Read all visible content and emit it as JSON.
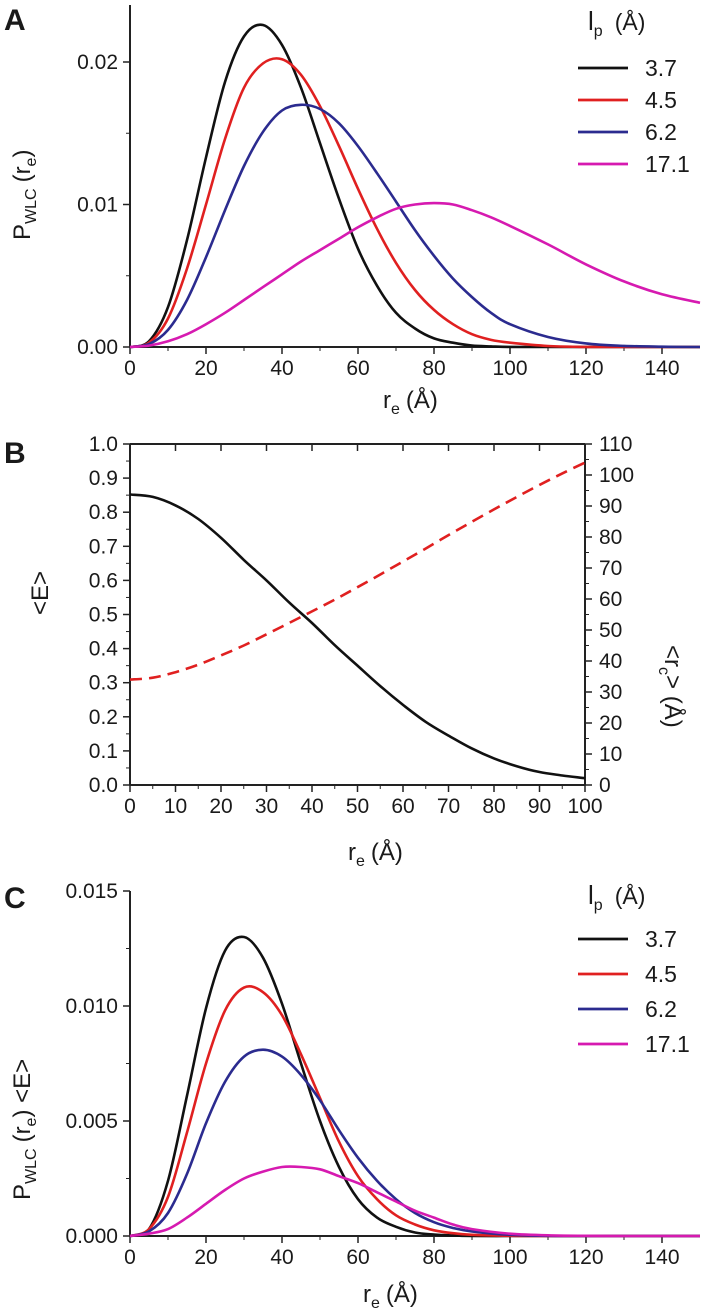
{
  "panel_labels": [
    "A",
    "B",
    "C"
  ],
  "chart_data": [
    {
      "id": "A",
      "type": "line",
      "xlabel": "r",
      "xlabel_sub": "e",
      "xlabel_unit": "(Å)",
      "ylabel": "P",
      "ylabel_sub1": "WLC",
      "ylabel_paren": "(r",
      "ylabel_sub2": "e",
      "ylabel_close": ")",
      "xlim": [
        0,
        150
      ],
      "ylim": [
        0,
        0.024
      ],
      "xticks": [
        0,
        20,
        40,
        60,
        80,
        100,
        120,
        140
      ],
      "xtick_labels": [
        "0",
        "20",
        "40",
        "60",
        "80",
        "100",
        "120",
        "140"
      ],
      "yticks": [
        0,
        0.01,
        0.02
      ],
      "ytick_labels": [
        "0.00",
        "0.01",
        "0.02"
      ],
      "legend_title": "l",
      "legend_title_sub": "p",
      "legend_title_unit": "(Å)",
      "legend_position": "top-right",
      "series": [
        {
          "name": "3.7",
          "color": "#111111",
          "x": [
            0,
            5,
            10,
            15,
            20,
            25,
            30,
            35,
            40,
            45,
            50,
            55,
            60,
            65,
            70,
            75,
            80,
            85,
            90,
            95,
            100,
            110,
            120,
            130,
            140,
            150
          ],
          "y": [
            0,
            0.0004,
            0.0028,
            0.0075,
            0.0133,
            0.0186,
            0.0218,
            0.0226,
            0.0212,
            0.0182,
            0.0143,
            0.0104,
            0.0069,
            0.0043,
            0.0024,
            0.0013,
            0.0006,
            0.0003,
            0.0001,
            4e-05,
            1e-05,
            0,
            0,
            0,
            0,
            0
          ]
        },
        {
          "name": "4.5",
          "color": "#e02020",
          "x": [
            0,
            5,
            10,
            15,
            20,
            25,
            30,
            35,
            40,
            45,
            50,
            55,
            60,
            65,
            70,
            75,
            80,
            85,
            90,
            95,
            100,
            110,
            120,
            130,
            140,
            150
          ],
          "y": [
            0,
            0.0003,
            0.002,
            0.0055,
            0.01,
            0.0146,
            0.0182,
            0.0199,
            0.0202,
            0.0191,
            0.0169,
            0.0141,
            0.0111,
            0.0083,
            0.0059,
            0.004,
            0.0026,
            0.0016,
            0.0009,
            0.0005,
            0.0003,
            7e-05,
            1e-05,
            0,
            0,
            0
          ]
        },
        {
          "name": "6.2",
          "color": "#2b2b8f",
          "x": [
            0,
            5,
            10,
            15,
            20,
            25,
            30,
            35,
            40,
            45,
            50,
            55,
            60,
            65,
            70,
            75,
            80,
            85,
            90,
            95,
            100,
            110,
            120,
            130,
            140,
            150
          ],
          "y": [
            0,
            0.0002,
            0.0012,
            0.0033,
            0.0063,
            0.0096,
            0.0127,
            0.0151,
            0.0166,
            0.017,
            0.0167,
            0.0157,
            0.0141,
            0.0122,
            0.0102,
            0.0082,
            0.0064,
            0.0048,
            0.0035,
            0.0024,
            0.0016,
            0.0007,
            0.00025,
            8e-05,
            2e-05,
            0
          ]
        },
        {
          "name": "17.1",
          "color": "#d61ab0",
          "x": [
            0,
            5,
            10,
            15,
            20,
            25,
            30,
            35,
            40,
            45,
            50,
            55,
            60,
            65,
            70,
            75,
            80,
            85,
            90,
            95,
            100,
            110,
            120,
            130,
            140,
            150
          ],
          "y": [
            0,
            0.0001,
            0.0004,
            0.0009,
            0.0016,
            0.0024,
            0.0033,
            0.0042,
            0.0051,
            0.006,
            0.0068,
            0.0076,
            0.0084,
            0.0091,
            0.0097,
            0.01,
            0.0101,
            0.01,
            0.0096,
            0.0091,
            0.0085,
            0.0072,
            0.0058,
            0.0046,
            0.0037,
            0.0031
          ]
        }
      ]
    },
    {
      "id": "B",
      "type": "line",
      "xlabel": "r",
      "xlabel_sub": "e",
      "xlabel_unit": "(Å)",
      "ylabel": "<E>",
      "ylabel2": "<r",
      "ylabel2_sub": "c",
      "ylabel2_close": "> (Å)",
      "xlim": [
        0,
        100
      ],
      "ylim": [
        0,
        1.0
      ],
      "y2lim": [
        0,
        110
      ],
      "xticks": [
        0,
        10,
        20,
        30,
        40,
        50,
        60,
        70,
        80,
        90,
        100
      ],
      "xtick_labels": [
        "0",
        "10",
        "20",
        "30",
        "40",
        "50",
        "60",
        "70",
        "80",
        "90",
        "100"
      ],
      "yticks": [
        0,
        0.1,
        0.2,
        0.3,
        0.4,
        0.5,
        0.6,
        0.7,
        0.8,
        0.9,
        1.0
      ],
      "ytick_labels": [
        "0.0",
        "0.1",
        "0.2",
        "0.3",
        "0.4",
        "0.5",
        "0.6",
        "0.7",
        "0.8",
        "0.9",
        "1.0"
      ],
      "y2ticks": [
        0,
        10,
        20,
        30,
        40,
        50,
        60,
        70,
        80,
        90,
        100,
        110
      ],
      "y2tick_labels": [
        "0",
        "10",
        "20",
        "30",
        "40",
        "50",
        "60",
        "70",
        "80",
        "90",
        "100",
        "110"
      ],
      "series": [
        {
          "axis": "left",
          "color": "#111111",
          "style": "solid",
          "x": [
            0,
            5,
            10,
            15,
            20,
            25,
            30,
            35,
            40,
            45,
            50,
            55,
            60,
            65,
            70,
            75,
            80,
            85,
            90,
            95,
            100
          ],
          "y": [
            0.852,
            0.845,
            0.82,
            0.78,
            0.725,
            0.66,
            0.6,
            0.535,
            0.475,
            0.41,
            0.35,
            0.29,
            0.235,
            0.185,
            0.145,
            0.108,
            0.078,
            0.055,
            0.038,
            0.028,
            0.02
          ]
        },
        {
          "axis": "right",
          "color": "#e02020",
          "style": "dashed",
          "x": [
            0,
            5,
            10,
            15,
            20,
            25,
            30,
            35,
            40,
            45,
            50,
            55,
            60,
            65,
            70,
            75,
            80,
            85,
            90,
            95,
            100
          ],
          "y": [
            34,
            34.6,
            36.4,
            38.8,
            41.8,
            45,
            48.6,
            52.3,
            56,
            59.8,
            63.8,
            67.9,
            72.1,
            76.3,
            80.6,
            84.8,
            88.9,
            92.9,
            96.8,
            100.5,
            104
          ]
        }
      ]
    },
    {
      "id": "C",
      "type": "line",
      "xlabel": "r",
      "xlabel_sub": "e",
      "xlabel_unit": "(Å)",
      "ylabel": "P",
      "ylabel_sub1": "WLC",
      "ylabel_paren": "(r",
      "ylabel_sub2": "e",
      "ylabel_close": ") <E>",
      "xlim": [
        0,
        150
      ],
      "ylim": [
        0,
        0.015
      ],
      "xticks": [
        0,
        20,
        40,
        60,
        80,
        100,
        120,
        140
      ],
      "xtick_labels": [
        "0",
        "20",
        "40",
        "60",
        "80",
        "100",
        "120",
        "140"
      ],
      "yticks": [
        0,
        0.005,
        0.01,
        0.015
      ],
      "ytick_labels": [
        "0.000",
        "0.005",
        "0.010",
        "0.015"
      ],
      "legend_title": "l",
      "legend_title_sub": "p",
      "legend_title_unit": "(Å)",
      "legend_position": "top-right",
      "series": [
        {
          "name": "3.7",
          "color": "#111111",
          "x": [
            0,
            5,
            10,
            15,
            20,
            25,
            30,
            35,
            40,
            45,
            50,
            55,
            60,
            65,
            70,
            75,
            80,
            85,
            90,
            100,
            110,
            120,
            130,
            140,
            150
          ],
          "y": [
            0,
            0.0003,
            0.0024,
            0.0061,
            0.0099,
            0.0124,
            0.013,
            0.0121,
            0.0101,
            0.0075,
            0.005,
            0.003,
            0.0016,
            0.0008,
            0.0004,
            0.00015,
            6e-05,
            2e-05,
            0,
            0,
            0,
            0,
            0,
            0,
            0
          ]
        },
        {
          "name": "4.5",
          "color": "#e02020",
          "x": [
            0,
            5,
            10,
            15,
            20,
            25,
            30,
            35,
            40,
            45,
            50,
            55,
            60,
            65,
            70,
            75,
            80,
            85,
            90,
            100,
            110,
            120,
            130,
            140,
            150
          ],
          "y": [
            0,
            0.0003,
            0.0017,
            0.0045,
            0.0075,
            0.0098,
            0.0108,
            0.0106,
            0.0096,
            0.0079,
            0.006,
            0.0041,
            0.0026,
            0.0016,
            0.0009,
            0.0005,
            0.00025,
            0.00012,
            5e-05,
            1e-05,
            0,
            0,
            0,
            0,
            0
          ]
        },
        {
          "name": "6.2",
          "color": "#2b2b8f",
          "x": [
            0,
            5,
            10,
            15,
            20,
            25,
            30,
            35,
            40,
            45,
            50,
            55,
            60,
            65,
            70,
            75,
            80,
            85,
            90,
            100,
            110,
            120,
            130,
            140,
            150
          ],
          "y": [
            0,
            0.0002,
            0.001,
            0.0027,
            0.0049,
            0.0067,
            0.0078,
            0.0081,
            0.0078,
            0.007,
            0.0059,
            0.0046,
            0.0034,
            0.0024,
            0.0016,
            0.001,
            0.0006,
            0.00035,
            0.0002,
            5e-05,
            1e-05,
            0,
            0,
            0,
            0
          ]
        },
        {
          "name": "17.1",
          "color": "#d61ab0",
          "x": [
            0,
            5,
            10,
            15,
            20,
            25,
            30,
            35,
            40,
            45,
            50,
            55,
            60,
            65,
            70,
            75,
            80,
            85,
            90,
            100,
            110,
            120,
            130,
            140,
            150
          ],
          "y": [
            0,
            0.0001,
            0.0003,
            0.0008,
            0.0014,
            0.002,
            0.0025,
            0.0028,
            0.003,
            0.003,
            0.0029,
            0.0026,
            0.0023,
            0.0019,
            0.0015,
            0.0011,
            0.0008,
            0.0005,
            0.0003,
            0.0001,
            3e-05,
            1e-05,
            0,
            0,
            0
          ]
        }
      ]
    }
  ]
}
